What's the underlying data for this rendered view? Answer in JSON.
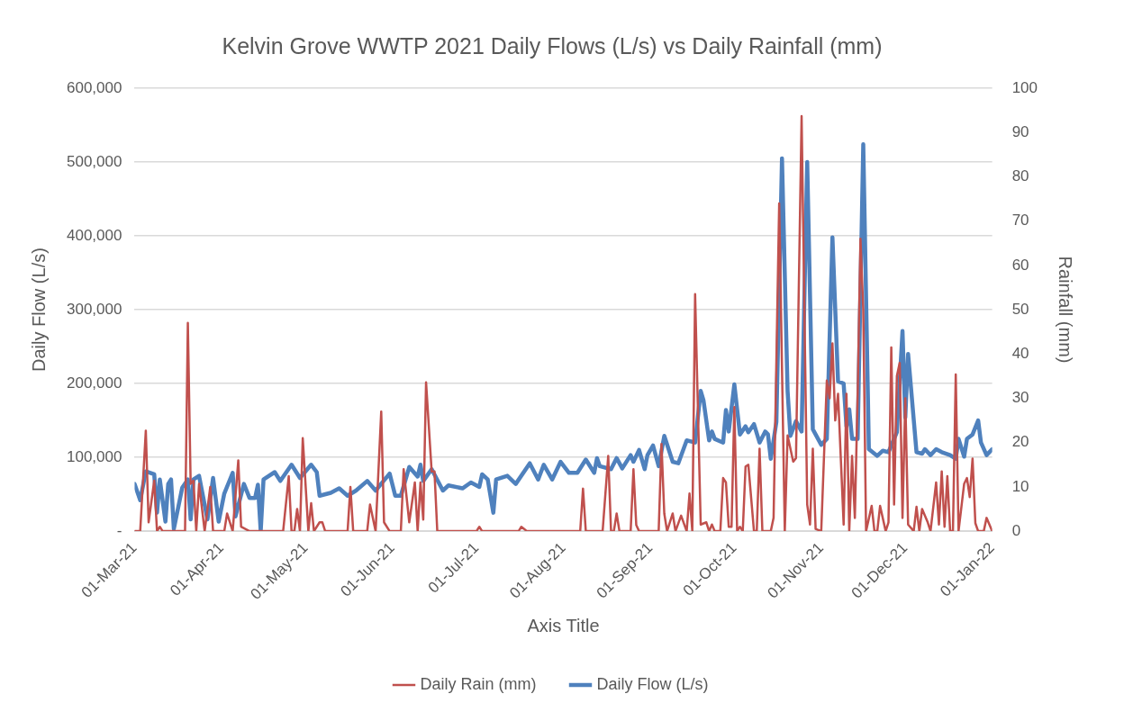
{
  "chart_data": {
    "type": "line",
    "title": "Kelvin Grove WWTP 2021 Daily Flows (L/s) vs Daily Rainfall (mm)",
    "xlabel": "Axis Title",
    "ylabel": "Daily Flow (L/s)",
    "y2label": "Rainfall (mm)",
    "xlim": [
      "2021-03-01",
      "2022-01-01"
    ],
    "xticks": [
      {
        "value": "2021-03-01",
        "label": "01-Mar-21"
      },
      {
        "value": "2021-04-01",
        "label": "01-Apr-21"
      },
      {
        "value": "2021-05-01",
        "label": "01-May-21"
      },
      {
        "value": "2021-06-01",
        "label": "01-Jun-21"
      },
      {
        "value": "2021-07-01",
        "label": "01-Jul-21"
      },
      {
        "value": "2021-08-01",
        "label": "01-Aug-21"
      },
      {
        "value": "2021-09-01",
        "label": "01-Sep-21"
      },
      {
        "value": "2021-10-01",
        "label": "01-Oct-21"
      },
      {
        "value": "2021-11-01",
        "label": "01-Nov-21"
      },
      {
        "value": "2021-12-01",
        "label": "01-Dec-21"
      },
      {
        "value": "2022-01-01",
        "label": "01-Jan-22"
      }
    ],
    "ylim": [
      0,
      600000
    ],
    "yticks": [
      {
        "value": 0,
        "label": "-"
      },
      {
        "value": 100000,
        "label": "100,000"
      },
      {
        "value": 200000,
        "label": "200,000"
      },
      {
        "value": 300000,
        "label": "300,000"
      },
      {
        "value": 400000,
        "label": "400,000"
      },
      {
        "value": 500000,
        "label": "500,000"
      },
      {
        "value": 600000,
        "label": "600,000"
      }
    ],
    "y2lim": [
      0,
      100
    ],
    "y2ticks": [
      0,
      10,
      20,
      30,
      40,
      50,
      60,
      70,
      80,
      90,
      100
    ],
    "grid": "y",
    "legend": "bottom",
    "marker": "none",
    "line_style": "solid",
    "series": [
      {
        "name": "Daily Flow (L/s)",
        "color": "#4f81bd",
        "x": [
          "2021-03-01",
          "2021-03-03",
          "2021-03-05",
          "2021-03-08",
          "2021-03-09",
          "2021-03-10",
          "2021-03-12",
          "2021-03-13",
          "2021-03-14",
          "2021-03-15",
          "2021-03-18",
          "2021-03-20",
          "2021-03-21",
          "2021-03-22",
          "2021-03-24",
          "2021-03-27",
          "2021-03-29",
          "2021-03-31",
          "2021-04-02",
          "2021-04-05",
          "2021-04-06",
          "2021-04-09",
          "2021-04-11",
          "2021-04-13",
          "2021-04-14",
          "2021-04-15",
          "2021-04-16",
          "2021-04-20",
          "2021-04-22",
          "2021-04-26",
          "2021-04-29",
          "2021-05-03",
          "2021-05-05",
          "2021-05-06",
          "2021-05-10",
          "2021-05-13",
          "2021-05-16",
          "2021-05-19",
          "2021-05-23",
          "2021-05-26",
          "2021-05-31",
          "2021-06-02",
          "2021-06-04",
          "2021-06-07",
          "2021-06-10",
          "2021-06-11",
          "2021-06-12",
          "2021-06-15",
          "2021-06-19",
          "2021-06-21",
          "2021-06-26",
          "2021-06-29",
          "2021-07-02",
          "2021-07-03",
          "2021-07-05",
          "2021-07-07",
          "2021-07-08",
          "2021-07-12",
          "2021-07-15",
          "2021-07-20",
          "2021-07-23",
          "2021-07-25",
          "2021-07-28",
          "2021-07-31",
          "2021-08-03",
          "2021-08-06",
          "2021-08-09",
          "2021-08-12",
          "2021-08-13",
          "2021-08-14",
          "2021-08-18",
          "2021-08-20",
          "2021-08-22",
          "2021-08-25",
          "2021-08-26",
          "2021-08-28",
          "2021-08-30",
          "2021-08-31",
          "2021-09-02",
          "2021-09-04",
          "2021-09-06",
          "2021-09-09",
          "2021-09-11",
          "2021-09-14",
          "2021-09-17",
          "2021-09-19",
          "2021-09-20",
          "2021-09-22",
          "2021-09-23",
          "2021-09-24",
          "2021-09-27",
          "2021-09-28",
          "2021-09-29",
          "2021-10-01",
          "2021-10-03",
          "2021-10-05",
          "2021-10-06",
          "2021-10-08",
          "2021-10-10",
          "2021-10-12",
          "2021-10-13",
          "2021-10-14",
          "2021-10-16",
          "2021-10-18",
          "2021-10-20",
          "2021-10-21",
          "2021-10-23",
          "2021-10-25",
          "2021-10-27",
          "2021-10-29",
          "2021-11-01",
          "2021-11-03",
          "2021-11-05",
          "2021-11-07",
          "2021-11-09",
          "2021-11-10",
          "2021-11-11",
          "2021-11-12",
          "2021-11-14",
          "2021-11-16",
          "2021-11-18",
          "2021-11-21",
          "2021-11-23",
          "2021-11-25",
          "2021-11-28",
          "2021-11-30",
          "2021-12-01",
          "2021-12-02",
          "2021-12-05",
          "2021-12-07",
          "2021-12-08",
          "2021-12-10",
          "2021-12-12",
          "2021-12-14",
          "2021-12-17",
          "2021-12-19",
          "2021-12-20",
          "2021-12-22",
          "2021-12-23",
          "2021-12-25",
          "2021-12-27",
          "2021-12-28",
          "2021-12-30",
          "2022-01-01"
        ],
        "values": [
          64000,
          42000,
          81000,
          77000,
          25000,
          70000,
          13000,
          64000,
          70000,
          3000,
          59000,
          70000,
          16000,
          70000,
          75000,
          16000,
          72000,
          13000,
          51000,
          79000,
          20000,
          64000,
          45000,
          45000,
          63000,
          0,
          70000,
          80000,
          68000,
          90000,
          72000,
          90000,
          80000,
          48000,
          52000,
          58000,
          48000,
          55000,
          68000,
          55000,
          78000,
          48000,
          48000,
          87000,
          74000,
          90000,
          68000,
          84000,
          55000,
          62000,
          58000,
          66000,
          60000,
          77000,
          70000,
          25000,
          70000,
          75000,
          64000,
          92000,
          70000,
          90000,
          70000,
          94000,
          79000,
          79000,
          97000,
          79000,
          99000,
          88000,
          84000,
          99000,
          85000,
          103000,
          94000,
          110000,
          84000,
          103000,
          116000,
          88000,
          129000,
          94000,
          92000,
          123000,
          120000,
          190000,
          177000,
          123000,
          135000,
          125000,
          120000,
          164000,
          135000,
          199000,
          131000,
          142000,
          134000,
          145000,
          120000,
          135000,
          131000,
          98000,
          148000,
          505000,
          190000,
          129000,
          149000,
          135000,
          500000,
          138000,
          117000,
          125000,
          398000,
          203000,
          200000,
          142000,
          165000,
          125000,
          125000,
          524000,
          111000,
          102000,
          109000,
          107000,
          134000,
          271000,
          154000,
          240000,
          107000,
          105000,
          111000,
          103000,
          111000,
          107000,
          103000,
          98000,
          125000,
          101000,
          125000,
          131000,
          150000,
          120000,
          103000,
          111000
        ]
      },
      {
        "name": "Daily Rain (mm)",
        "color": "#c0504d",
        "axis": "y2",
        "x": [
          "2021-03-01",
          "2021-03-03",
          "2021-03-05",
          "2021-03-06",
          "2021-03-08",
          "2021-03-09",
          "2021-03-10",
          "2021-03-11",
          "2021-03-19",
          "2021-03-20",
          "2021-03-21",
          "2021-03-22",
          "2021-03-23",
          "2021-03-24",
          "2021-03-26",
          "2021-03-28",
          "2021-03-29",
          "2021-04-02",
          "2021-04-03",
          "2021-04-05",
          "2021-04-07",
          "2021-04-08",
          "2021-04-11",
          "2021-04-23",
          "2021-04-25",
          "2021-04-26",
          "2021-04-27",
          "2021-04-28",
          "2021-04-29",
          "2021-04-30",
          "2021-05-02",
          "2021-05-03",
          "2021-05-04",
          "2021-05-06",
          "2021-05-07",
          "2021-05-08",
          "2021-05-16",
          "2021-05-17",
          "2021-05-18",
          "2021-05-23",
          "2021-05-24",
          "2021-05-26",
          "2021-05-28",
          "2021-05-29",
          "2021-05-31",
          "2021-06-04",
          "2021-06-05",
          "2021-06-06",
          "2021-06-07",
          "2021-06-09",
          "2021-06-10",
          "2021-06-11",
          "2021-06-12",
          "2021-06-13",
          "2021-06-15",
          "2021-06-16",
          "2021-06-17",
          "2021-07-01",
          "2021-07-02",
          "2021-07-03",
          "2021-07-16",
          "2021-07-17",
          "2021-07-19",
          "2021-08-07",
          "2021-08-08",
          "2021-08-09",
          "2021-08-15",
          "2021-08-17",
          "2021-08-18",
          "2021-08-19",
          "2021-08-20",
          "2021-08-21",
          "2021-08-25",
          "2021-08-26",
          "2021-08-27",
          "2021-08-28",
          "2021-09-04",
          "2021-09-05",
          "2021-09-06",
          "2021-09-07",
          "2021-09-09",
          "2021-09-10",
          "2021-09-12",
          "2021-09-14",
          "2021-09-15",
          "2021-09-16",
          "2021-09-17",
          "2021-09-19",
          "2021-09-21",
          "2021-09-22",
          "2021-09-23",
          "2021-09-24",
          "2021-09-26",
          "2021-09-27",
          "2021-09-28",
          "2021-09-29",
          "2021-09-30",
          "2021-10-01",
          "2021-10-02",
          "2021-10-03",
          "2021-10-04",
          "2021-10-05",
          "2021-10-06",
          "2021-10-08",
          "2021-10-09",
          "2021-10-10",
          "2021-10-11",
          "2021-10-14",
          "2021-10-15",
          "2021-10-17",
          "2021-10-19",
          "2021-10-20",
          "2021-10-22",
          "2021-10-23",
          "2021-10-25",
          "2021-10-27",
          "2021-10-28",
          "2021-10-29",
          "2021-10-30",
          "2021-11-01",
          "2021-11-03",
          "2021-11-04",
          "2021-11-05",
          "2021-11-06",
          "2021-11-07",
          "2021-11-09",
          "2021-11-10",
          "2021-11-11",
          "2021-11-12",
          "2021-11-13",
          "2021-11-14",
          "2021-11-15",
          "2021-11-16",
          "2021-11-17",
          "2021-11-19",
          "2021-11-20",
          "2021-11-21",
          "2021-11-22",
          "2021-11-24",
          "2021-11-25",
          "2021-11-26",
          "2021-11-27",
          "2021-11-28",
          "2021-11-29",
          "2021-11-30",
          "2021-12-01",
          "2021-12-02",
          "2021-12-04",
          "2021-12-05",
          "2021-12-06",
          "2021-12-07",
          "2021-12-09",
          "2021-12-10",
          "2021-12-12",
          "2021-12-13",
          "2021-12-14",
          "2021-12-15",
          "2021-12-16",
          "2021-12-17",
          "2021-12-18",
          "2021-12-19",
          "2021-12-20",
          "2021-12-22",
          "2021-12-23",
          "2021-12-24",
          "2021-12-25",
          "2021-12-26",
          "2021-12-27",
          "2021-12-29",
          "2021-12-30",
          "2022-01-01"
        ],
        "values": [
          0,
          0,
          22.7,
          2,
          11.4,
          0,
          1,
          0,
          0,
          47,
          10.7,
          11.4,
          0,
          10.7,
          0,
          10,
          0,
          0,
          4,
          0,
          16,
          1,
          0,
          0,
          12.4,
          0,
          0,
          5,
          0,
          21,
          0,
          6.3,
          0,
          2,
          2,
          0,
          0,
          10,
          0,
          0,
          6,
          0,
          27,
          2,
          0,
          0,
          14,
          8,
          2,
          11,
          0,
          11,
          2.6,
          33.6,
          13.5,
          13.5,
          0,
          0,
          1,
          0,
          0,
          1,
          0,
          0,
          9.6,
          0,
          0,
          17,
          0,
          0,
          4,
          0,
          0,
          14,
          1.4,
          0,
          0,
          19.7,
          4,
          0,
          4,
          0,
          3.5,
          0,
          8.5,
          0,
          53.5,
          1.5,
          2,
          0,
          1.5,
          0,
          0,
          12,
          11,
          1,
          1,
          28,
          0,
          1,
          0,
          14.6,
          15,
          0,
          0,
          18.6,
          0,
          0,
          3,
          74,
          0,
          21.6,
          15.7,
          16.5,
          93.7,
          6,
          1.5,
          18.6,
          0.5,
          0,
          34,
          30,
          42.4,
          25,
          31,
          1.5,
          31,
          0,
          17,
          3,
          31,
          66,
          50,
          0,
          5.7,
          0,
          0,
          5.7,
          0,
          2,
          41.5,
          6,
          35,
          38,
          3,
          30,
          1.5,
          0,
          5.5,
          0,
          5,
          2,
          0,
          11,
          1.5,
          13.5,
          1,
          12.4,
          0,
          0,
          35.4,
          0,
          10.7,
          12,
          7.7,
          16.4,
          1.8,
          0,
          0,
          3,
          0
        ]
      }
    ]
  }
}
